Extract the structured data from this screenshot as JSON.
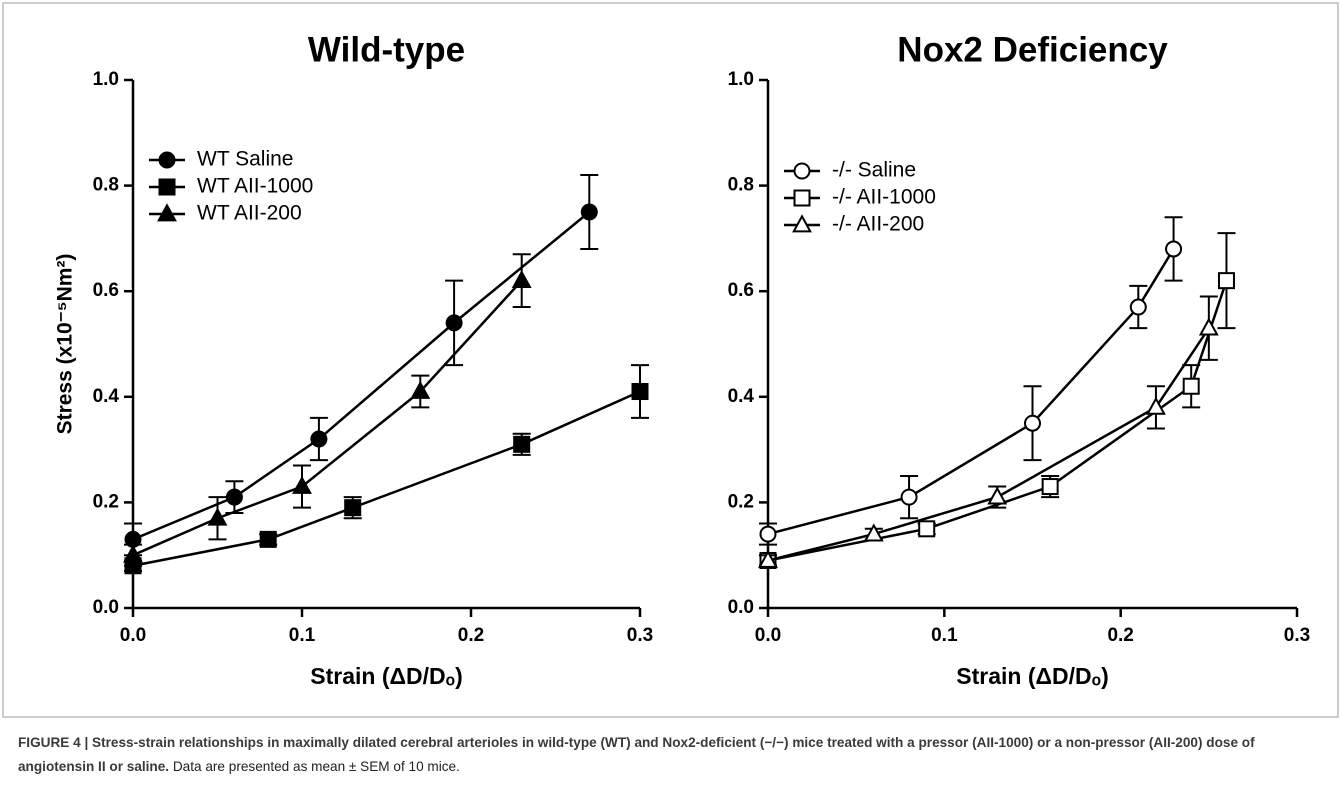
{
  "chart_data": [
    {
      "type": "line",
      "title": "Wild-type",
      "xlabel": "Strain (ΔD/Dₒ)",
      "ylabel": "Stress (x10⁻⁵Nm²)",
      "xlim": [
        0,
        0.3
      ],
      "ylim": [
        0,
        1
      ],
      "xticks": [
        {
          "value": 0,
          "label": "0.0"
        },
        0.1,
        0.2,
        0.3
      ],
      "yticks": [
        {
          "value": 0,
          "label": "0.0"
        },
        0.2,
        0.4,
        0.6,
        0.8,
        {
          "value": 1,
          "label": "1.0"
        }
      ],
      "legend": "upper left",
      "series": [
        {
          "name": "WT Saline",
          "color": "#000000",
          "marker": "circle",
          "filled": true,
          "x": [
            0,
            0.06,
            0.11,
            0.19,
            0.27
          ],
          "values": [
            0.13,
            0.21,
            0.32,
            0.54,
            0.75
          ],
          "errors": [
            0.03,
            0.03,
            0.04,
            0.08,
            0.07
          ]
        },
        {
          "name": "WT AII-1000",
          "color": "#000000",
          "marker": "square",
          "filled": true,
          "x": [
            0,
            0.08,
            0.13,
            0.23,
            0.3
          ],
          "values": [
            0.08,
            0.13,
            0.19,
            0.31,
            0.41
          ],
          "errors": [
            0.01,
            0.01,
            0.02,
            0.02,
            0.05
          ]
        },
        {
          "name": "WT AII-200",
          "color": "#000000",
          "marker": "triangle",
          "filled": true,
          "x": [
            0,
            0.05,
            0.1,
            0.17,
            0.23
          ],
          "values": [
            0.1,
            0.17,
            0.23,
            0.41,
            0.62
          ],
          "errors": [
            0.02,
            0.04,
            0.04,
            0.03,
            0.05
          ]
        }
      ]
    },
    {
      "type": "line",
      "title": "Nox2 Deficiency",
      "xlabel": "Strain (ΔD/Dₒ)",
      "xlim": [
        0,
        0.3
      ],
      "ylim": [
        0,
        1
      ],
      "xticks": [
        {
          "value": 0,
          "label": "0.0"
        },
        0.1,
        0.2,
        0.3
      ],
      "yticks": [
        {
          "value": 0,
          "label": "0.0"
        },
        0.2,
        0.4,
        0.6,
        0.8,
        {
          "value": 1,
          "label": "1.0"
        }
      ],
      "legend": "upper left",
      "series": [
        {
          "name": "-/- Saline",
          "color": "#000000",
          "marker": "circle",
          "filled": false,
          "x": [
            0,
            0.08,
            0.15,
            0.21,
            0.23
          ],
          "values": [
            0.14,
            0.21,
            0.35,
            0.57,
            0.68
          ],
          "errors": [
            0.02,
            0.04,
            0.07,
            0.04,
            0.06
          ]
        },
        {
          "name": "-/- AII-1000",
          "color": "#000000",
          "marker": "square",
          "filled": false,
          "x": [
            0,
            0.09,
            0.16,
            0.24,
            0.26
          ],
          "values": [
            0.09,
            0.15,
            0.23,
            0.42,
            0.62
          ],
          "errors": [
            0.01,
            0.01,
            0.02,
            0.04,
            0.09
          ]
        },
        {
          "name": "-/- AII-200",
          "color": "#000000",
          "marker": "triangle",
          "filled": false,
          "x": [
            0,
            0.06,
            0.13,
            0.22,
            0.25
          ],
          "values": [
            0.09,
            0.14,
            0.21,
            0.38,
            0.53
          ],
          "errors": [
            0.01,
            0.01,
            0.02,
            0.04,
            0.06
          ]
        }
      ]
    }
  ],
  "caption": {
    "bold": "FIGURE 4 | Stress-strain relationships in maximally dilated cerebral arterioles in wild-type (WT) and Nox2-deficient (−/−) mice treated with a pressor (AII-1000) or a non-pressor (AII-200) dose of angiotensin II or saline.",
    "text": " Data are presented as mean ± SEM of 10 mice."
  }
}
